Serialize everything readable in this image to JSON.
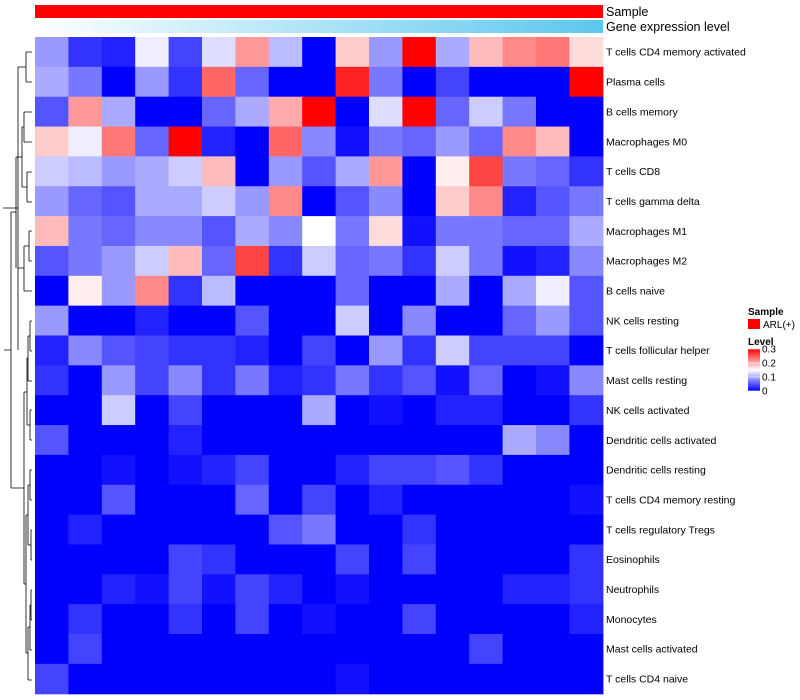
{
  "chart_data": {
    "type": "heatmap",
    "title": "",
    "annotations": {
      "sample_label": "Sample",
      "expression_label": "Gene expression level",
      "sample_color": "#ff0000",
      "expression_gradient": [
        "#ffffff",
        "#5cc7ee"
      ]
    },
    "legend": {
      "placement": "right",
      "sample_title": "Sample",
      "sample_entry": "ARL(+)",
      "sample_color": "#ff0000",
      "level_title": "Level",
      "ticks": [
        0.3,
        0.2,
        0.1,
        0
      ],
      "tick_labels": [
        "0.3",
        "0.2",
        "0.1",
        "0"
      ],
      "range": [
        0,
        0.3
      ],
      "colors": {
        "low": "#0000ff",
        "mid": "#ffffff",
        "high": "#ff0000"
      }
    },
    "rows": [
      "T cells CD4 memory activated",
      "Plasma cells",
      "B cells memory",
      "Macrophages M0",
      "T cells CD8",
      "T cells gamma delta",
      "Macrophages M1",
      "Macrophages M2",
      "B cells naive",
      "NK cells resting",
      "T cells follicular helper",
      "Mast cells resting",
      "NK cells activated",
      "Dendritic cells activated",
      "Dendritic cells resting",
      "T cells CD4 memory resting",
      "T cells regulatory  Tregs",
      "Eosinophils",
      "Neutrophils",
      "Monocytes",
      "Mast cells activated",
      "T cells CD4 naive"
    ],
    "n_columns": 17,
    "values": [
      [
        0.09,
        0.03,
        0.02,
        0.14,
        0.04,
        0.13,
        0.21,
        0.11,
        0.0,
        0.18,
        0.09,
        0.3,
        0.1,
        0.19,
        0.22,
        0.23,
        0.17
      ],
      [
        0.1,
        0.07,
        0.0,
        0.09,
        0.03,
        0.24,
        0.06,
        0.0,
        0.0,
        0.28,
        0.07,
        0.0,
        0.04,
        0.0,
        0.0,
        0.0,
        0.3
      ],
      [
        0.05,
        0.21,
        0.1,
        0.0,
        0.0,
        0.06,
        0.1,
        0.2,
        0.3,
        0.0,
        0.13,
        0.3,
        0.06,
        0.12,
        0.07,
        0.0,
        0.0
      ],
      [
        0.18,
        0.14,
        0.23,
        0.06,
        0.3,
        0.02,
        0.0,
        0.24,
        0.08,
        0.01,
        0.07,
        0.06,
        0.09,
        0.06,
        0.22,
        0.19,
        0.0
      ],
      [
        0.12,
        0.11,
        0.09,
        0.1,
        0.12,
        0.19,
        0.0,
        0.09,
        0.05,
        0.1,
        0.21,
        0.0,
        0.16,
        0.26,
        0.07,
        0.06,
        0.03
      ],
      [
        0.09,
        0.06,
        0.05,
        0.1,
        0.1,
        0.12,
        0.09,
        0.22,
        0.0,
        0.05,
        0.08,
        0.0,
        0.18,
        0.22,
        0.02,
        0.05,
        0.07
      ],
      [
        0.19,
        0.07,
        0.06,
        0.08,
        0.08,
        0.05,
        0.1,
        0.08,
        0.15,
        0.07,
        0.17,
        0.01,
        0.07,
        0.07,
        0.06,
        0.06,
        0.1
      ],
      [
        0.05,
        0.07,
        0.09,
        0.12,
        0.19,
        0.06,
        0.26,
        0.03,
        0.12,
        0.06,
        0.07,
        0.03,
        0.12,
        0.07,
        0.01,
        0.02,
        0.08
      ],
      [
        0.0,
        0.16,
        0.09,
        0.22,
        0.03,
        0.11,
        0.0,
        0.0,
        0.0,
        0.06,
        0.0,
        0.0,
        0.1,
        0.0,
        0.1,
        0.14,
        0.05
      ],
      [
        0.09,
        0.0,
        0.0,
        0.02,
        0.0,
        0.0,
        0.05,
        0.0,
        0.0,
        0.12,
        0.0,
        0.08,
        0.0,
        0.0,
        0.06,
        0.09,
        0.05
      ],
      [
        0.02,
        0.08,
        0.05,
        0.04,
        0.03,
        0.03,
        0.02,
        0.0,
        0.04,
        0.0,
        0.09,
        0.03,
        0.12,
        0.04,
        0.04,
        0.04,
        0.0
      ],
      [
        0.03,
        0.0,
        0.09,
        0.04,
        0.08,
        0.03,
        0.07,
        0.02,
        0.03,
        0.07,
        0.03,
        0.05,
        0.01,
        0.06,
        0.0,
        0.01,
        0.08
      ],
      [
        0.0,
        0.0,
        0.12,
        0.0,
        0.04,
        0.0,
        0.0,
        0.0,
        0.1,
        0.0,
        0.01,
        0.0,
        0.02,
        0.02,
        0.0,
        0.0,
        0.03
      ],
      [
        0.05,
        0.0,
        0.0,
        0.0,
        0.02,
        0.0,
        0.0,
        0.0,
        0.0,
        0.0,
        0.0,
        0.0,
        0.0,
        0.0,
        0.1,
        0.08,
        0.0
      ],
      [
        0.0,
        0.0,
        0.01,
        0.0,
        0.01,
        0.02,
        0.04,
        0.0,
        0.0,
        0.02,
        0.04,
        0.04,
        0.05,
        0.03,
        0.0,
        0.0,
        0.0
      ],
      [
        0.0,
        0.0,
        0.05,
        0.0,
        0.0,
        0.0,
        0.06,
        0.0,
        0.04,
        0.0,
        0.02,
        0.0,
        0.0,
        0.0,
        0.0,
        0.0,
        0.01
      ],
      [
        0.0,
        0.02,
        0.0,
        0.0,
        0.0,
        0.0,
        0.0,
        0.05,
        0.07,
        0.0,
        0.0,
        0.03,
        0.0,
        0.0,
        0.0,
        0.0,
        0.0
      ],
      [
        0.0,
        0.0,
        0.0,
        0.0,
        0.04,
        0.03,
        0.0,
        0.0,
        0.0,
        0.04,
        0.0,
        0.04,
        0.0,
        0.0,
        0.0,
        0.0,
        0.03
      ],
      [
        0.0,
        0.0,
        0.02,
        0.01,
        0.04,
        0.01,
        0.04,
        0.02,
        0.0,
        0.01,
        0.0,
        0.0,
        0.0,
        0.0,
        0.02,
        0.02,
        0.03
      ],
      [
        0.0,
        0.03,
        0.0,
        0.0,
        0.03,
        0.0,
        0.04,
        0.0,
        0.01,
        0.0,
        0.0,
        0.04,
        0.0,
        0.0,
        0.0,
        0.0,
        0.02
      ],
      [
        0.0,
        0.04,
        0.0,
        0.0,
        0.0,
        0.0,
        0.0,
        0.0,
        0.0,
        0.0,
        0.0,
        0.0,
        0.0,
        0.04,
        0.0,
        0.0,
        0.0
      ],
      [
        0.04,
        0.0,
        0.0,
        0.0,
        0.0,
        0.0,
        0.0,
        0.0,
        0.0,
        0.01,
        0.0,
        0.0,
        0.0,
        0.0,
        0.0,
        0.0,
        0.0
      ]
    ]
  }
}
